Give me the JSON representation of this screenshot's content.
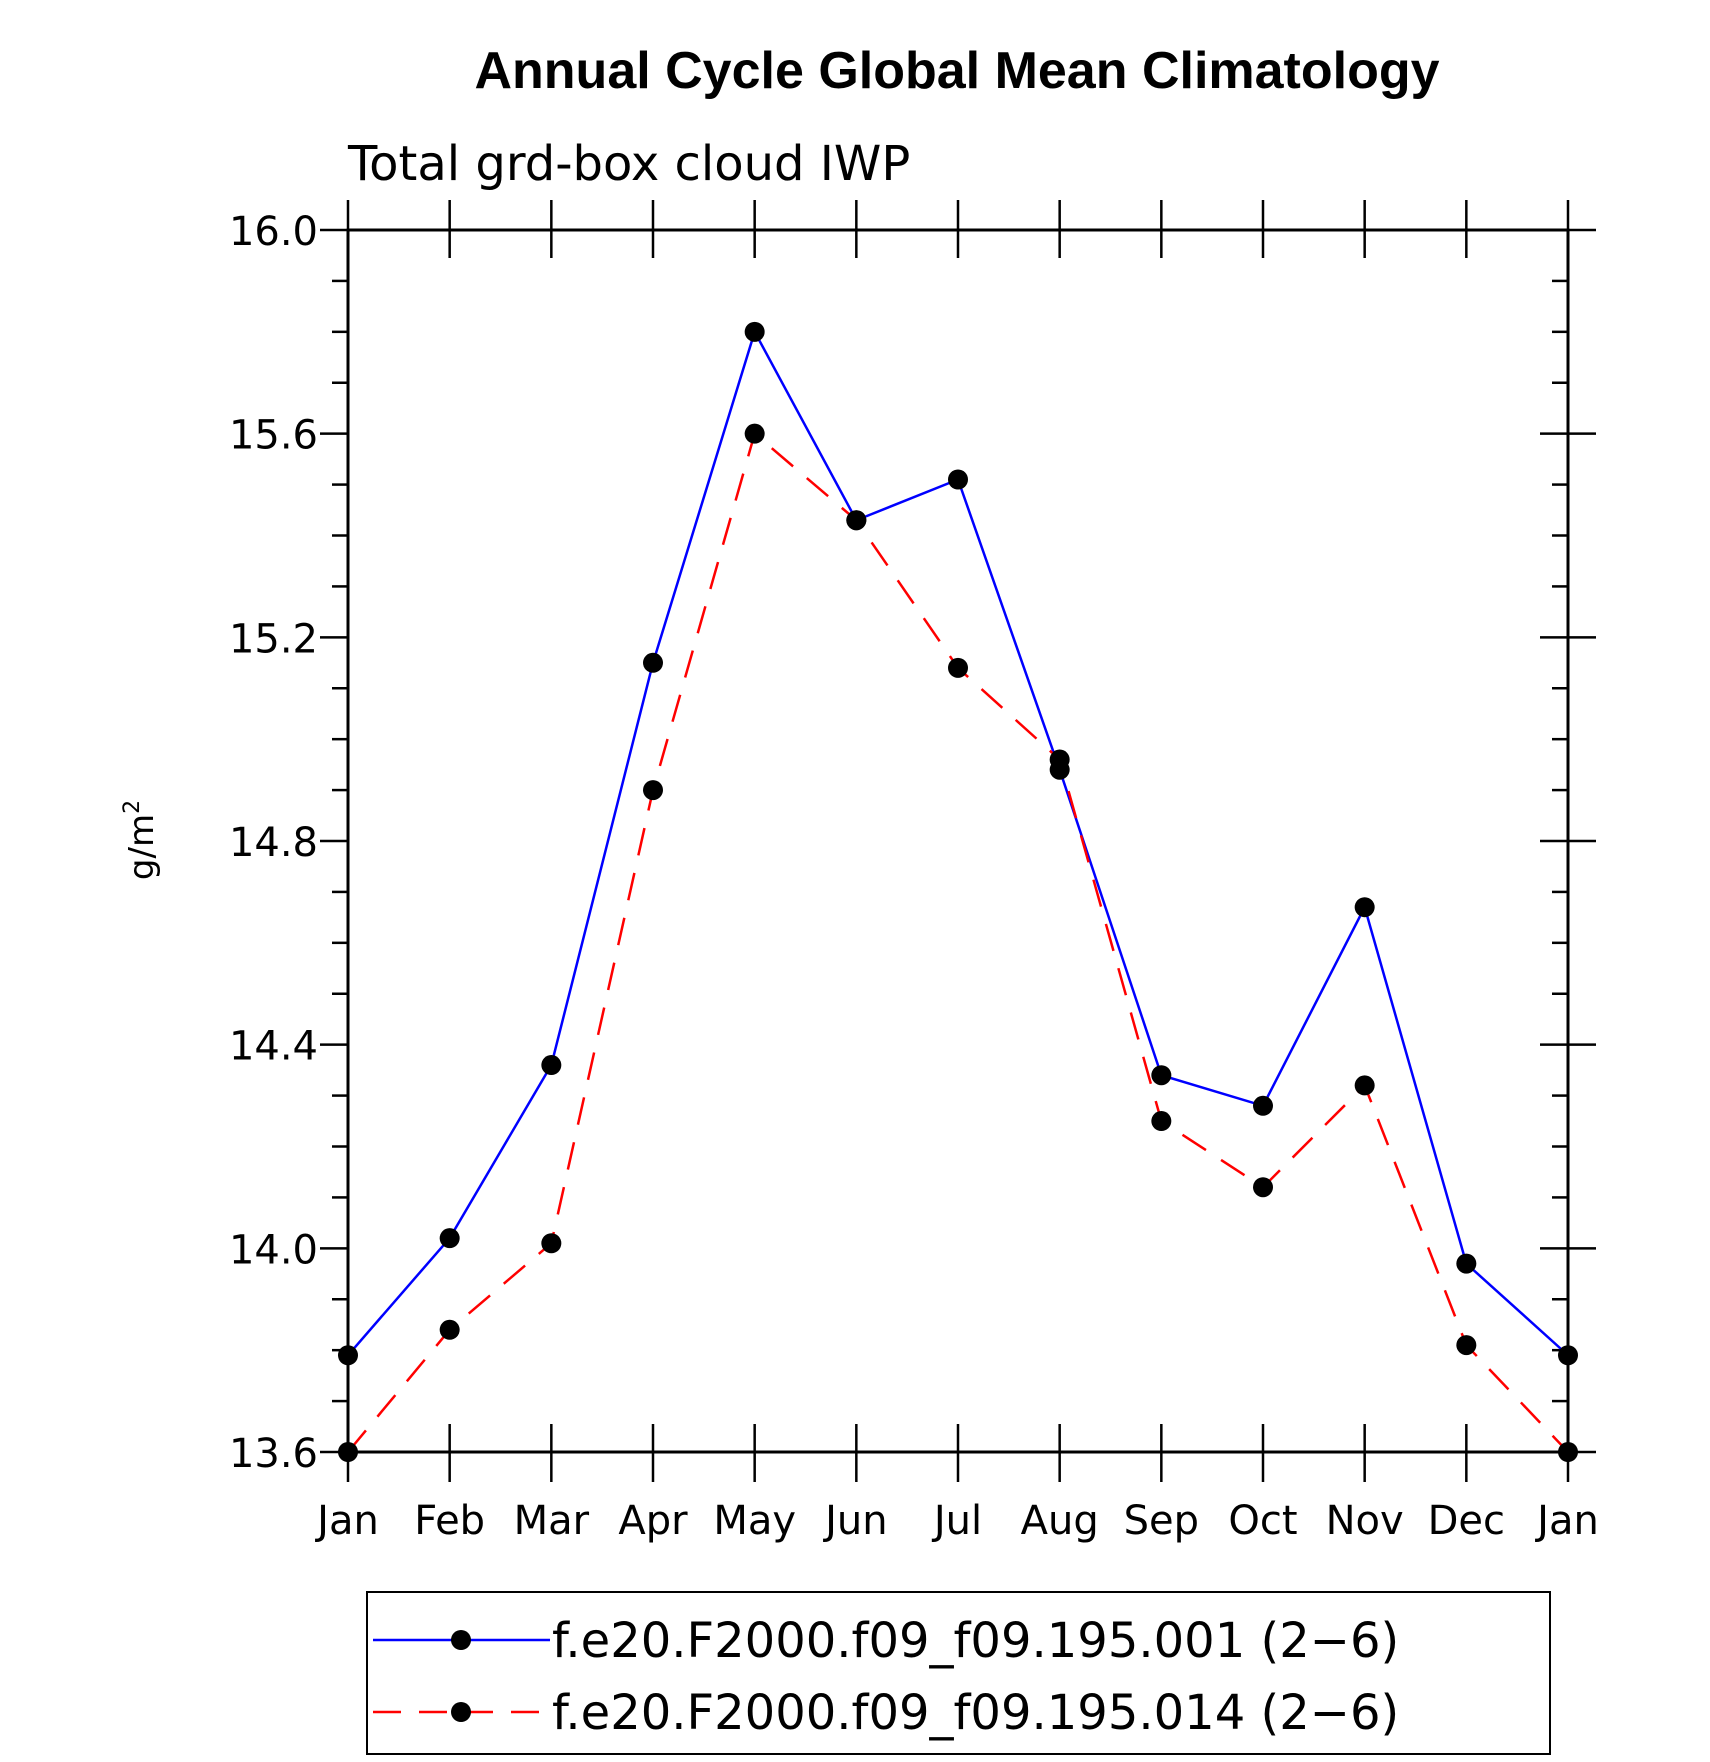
{
  "chart_data": {
    "type": "line",
    "title": "Annual Cycle Global Mean Climatology",
    "subtitle": "Total grd-box cloud IWP",
    "ylabel": "g/m",
    "ylabel_superscript": "2",
    "xlabel": "",
    "ylim": [
      13.6,
      16.0
    ],
    "yticks": [
      "16.0",
      "15.6",
      "15.2",
      "14.8",
      "14.4",
      "14.0",
      "13.6"
    ],
    "ytick_values": [
      16.0,
      15.6,
      15.2,
      14.8,
      14.4,
      14.0,
      13.6
    ],
    "categories": [
      "Jan",
      "Feb",
      "Mar",
      "Apr",
      "May",
      "Jun",
      "Jul",
      "Aug",
      "Sep",
      "Oct",
      "Nov",
      "Dec",
      "Jan"
    ],
    "grid": false,
    "legend_position": "bottom",
    "series": [
      {
        "name": "f.e20.F2000.f09_f09.195.001 (2−6)",
        "color": "#0000ff",
        "line_style": "solid",
        "marker": "filled-circle",
        "values": [
          13.79,
          14.02,
          14.36,
          15.15,
          15.8,
          15.43,
          15.51,
          14.94,
          14.34,
          14.28,
          14.67,
          13.97,
          13.79
        ]
      },
      {
        "name": "f.e20.F2000.f09_f09.195.014 (2−6)",
        "color": "#ff0000",
        "line_style": "dashed",
        "marker": "filled-circle",
        "values": [
          13.6,
          13.84,
          14.01,
          14.9,
          15.6,
          15.43,
          15.14,
          14.96,
          14.25,
          14.12,
          14.32,
          13.81,
          13.6
        ]
      }
    ]
  }
}
